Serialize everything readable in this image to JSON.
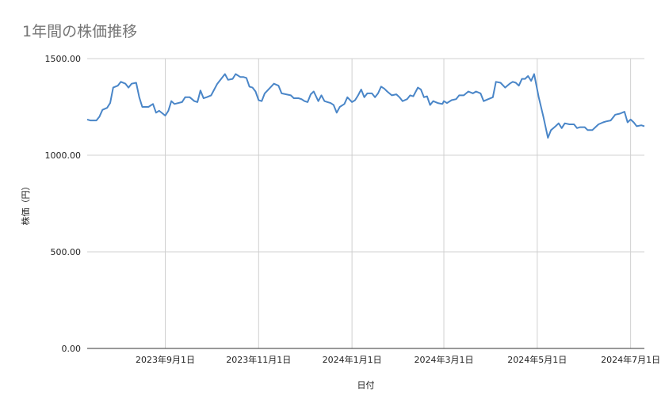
{
  "chart_data": {
    "type": "line",
    "title": "1年間の株価推移",
    "xlabel": "日付",
    "ylabel": "株価（円）",
    "ylim": [
      0,
      1500
    ],
    "y_ticks": [
      "0.00",
      "500.00",
      "1000.00",
      "1500.00"
    ],
    "x_ticks": [
      "2023年9月1日",
      "2023年11月1日",
      "2024年1月1日",
      "2024年3月1日",
      "2024年5月1日",
      "2024年7月1日"
    ],
    "x_tick_dates": [
      "2023-09-01",
      "2023-11-01",
      "2024-01-01",
      "2024-03-01",
      "2024-05-01",
      "2024-07-01"
    ],
    "xlim": [
      "2023-07-12",
      "2024-07-10"
    ],
    "grid": true,
    "legend": "none",
    "series": [
      {
        "color": "#4a86c8",
        "points": [
          [
            "2023-07-12",
            1185
          ],
          [
            "2023-07-14",
            1180
          ],
          [
            "2023-07-18",
            1180
          ],
          [
            "2023-07-20",
            1200
          ],
          [
            "2023-07-22",
            1235
          ],
          [
            "2023-07-25",
            1245
          ],
          [
            "2023-07-27",
            1270
          ],
          [
            "2023-07-29",
            1350
          ],
          [
            "2023-08-01",
            1360
          ],
          [
            "2023-08-03",
            1380
          ],
          [
            "2023-08-06",
            1370
          ],
          [
            "2023-08-08",
            1350
          ],
          [
            "2023-08-10",
            1370
          ],
          [
            "2023-08-13",
            1375
          ],
          [
            "2023-08-15",
            1300
          ],
          [
            "2023-08-17",
            1250
          ],
          [
            "2023-08-21",
            1250
          ],
          [
            "2023-08-24",
            1265
          ],
          [
            "2023-08-26",
            1220
          ],
          [
            "2023-08-28",
            1230
          ],
          [
            "2023-09-01",
            1205
          ],
          [
            "2023-09-03",
            1230
          ],
          [
            "2023-09-05",
            1280
          ],
          [
            "2023-09-07",
            1265
          ],
          [
            "2023-09-12",
            1275
          ],
          [
            "2023-09-14",
            1300
          ],
          [
            "2023-09-17",
            1300
          ],
          [
            "2023-09-20",
            1280
          ],
          [
            "2023-09-22",
            1275
          ],
          [
            "2023-09-24",
            1335
          ],
          [
            "2023-09-26",
            1295
          ],
          [
            "2023-09-28",
            1300
          ],
          [
            "2023-10-01",
            1310
          ],
          [
            "2023-10-03",
            1340
          ],
          [
            "2023-10-05",
            1370
          ],
          [
            "2023-10-08",
            1400
          ],
          [
            "2023-10-10",
            1420
          ],
          [
            "2023-10-12",
            1390
          ],
          [
            "2023-10-15",
            1395
          ],
          [
            "2023-10-17",
            1420
          ],
          [
            "2023-10-20",
            1405
          ],
          [
            "2023-10-22",
            1405
          ],
          [
            "2023-10-24",
            1400
          ],
          [
            "2023-10-26",
            1355
          ],
          [
            "2023-10-28",
            1350
          ],
          [
            "2023-10-30",
            1330
          ],
          [
            "2023-11-01",
            1285
          ],
          [
            "2023-11-03",
            1280
          ],
          [
            "2023-11-05",
            1320
          ],
          [
            "2023-11-08",
            1345
          ],
          [
            "2023-11-11",
            1370
          ],
          [
            "2023-11-14",
            1360
          ],
          [
            "2023-11-16",
            1320
          ],
          [
            "2023-11-19",
            1315
          ],
          [
            "2023-11-22",
            1310
          ],
          [
            "2023-11-24",
            1295
          ],
          [
            "2023-11-27",
            1295
          ],
          [
            "2023-11-29",
            1290
          ],
          [
            "2023-12-01",
            1280
          ],
          [
            "2023-12-03",
            1275
          ],
          [
            "2023-12-05",
            1315
          ],
          [
            "2023-12-07",
            1330
          ],
          [
            "2023-12-10",
            1280
          ],
          [
            "2023-12-12",
            1310
          ],
          [
            "2023-12-14",
            1280
          ],
          [
            "2023-12-16",
            1275
          ],
          [
            "2023-12-18",
            1270
          ],
          [
            "2023-12-20",
            1260
          ],
          [
            "2023-12-22",
            1220
          ],
          [
            "2023-12-24",
            1250
          ],
          [
            "2023-12-27",
            1265
          ],
          [
            "2023-12-29",
            1300
          ],
          [
            "2024-01-01",
            1275
          ],
          [
            "2024-01-03",
            1285
          ],
          [
            "2024-01-05",
            1310
          ],
          [
            "2024-01-07",
            1340
          ],
          [
            "2024-01-09",
            1300
          ],
          [
            "2024-01-11",
            1320
          ],
          [
            "2024-01-14",
            1320
          ],
          [
            "2024-01-16",
            1300
          ],
          [
            "2024-01-18",
            1320
          ],
          [
            "2024-01-20",
            1355
          ],
          [
            "2024-01-22",
            1345
          ],
          [
            "2024-01-24",
            1330
          ],
          [
            "2024-01-27",
            1310
          ],
          [
            "2024-01-30",
            1315
          ],
          [
            "2024-02-01",
            1300
          ],
          [
            "2024-02-03",
            1280
          ],
          [
            "2024-02-06",
            1290
          ],
          [
            "2024-02-08",
            1310
          ],
          [
            "2024-02-10",
            1305
          ],
          [
            "2024-02-13",
            1350
          ],
          [
            "2024-02-15",
            1340
          ],
          [
            "2024-02-17",
            1300
          ],
          [
            "2024-02-19",
            1305
          ],
          [
            "2024-02-21",
            1260
          ],
          [
            "2024-02-23",
            1280
          ],
          [
            "2024-02-26",
            1270
          ],
          [
            "2024-02-29",
            1265
          ],
          [
            "2024-03-01",
            1280
          ],
          [
            "2024-03-03",
            1270
          ],
          [
            "2024-03-06",
            1285
          ],
          [
            "2024-03-09",
            1290
          ],
          [
            "2024-03-11",
            1310
          ],
          [
            "2024-03-14",
            1310
          ],
          [
            "2024-03-17",
            1330
          ],
          [
            "2024-03-20",
            1320
          ],
          [
            "2024-03-22",
            1330
          ],
          [
            "2024-03-25",
            1320
          ],
          [
            "2024-03-27",
            1280
          ],
          [
            "2024-03-30",
            1290
          ],
          [
            "2024-04-02",
            1300
          ],
          [
            "2024-04-04",
            1380
          ],
          [
            "2024-04-07",
            1375
          ],
          [
            "2024-04-10",
            1350
          ],
          [
            "2024-04-13",
            1370
          ],
          [
            "2024-04-15",
            1380
          ],
          [
            "2024-04-17",
            1375
          ],
          [
            "2024-04-19",
            1360
          ],
          [
            "2024-04-21",
            1395
          ],
          [
            "2024-04-23",
            1395
          ],
          [
            "2024-04-25",
            1410
          ],
          [
            "2024-04-27",
            1385
          ],
          [
            "2024-04-29",
            1420
          ],
          [
            "2024-05-02",
            1300
          ],
          [
            "2024-05-05",
            1200
          ],
          [
            "2024-05-08",
            1090
          ],
          [
            "2024-05-10",
            1130
          ],
          [
            "2024-05-13",
            1150
          ],
          [
            "2024-05-15",
            1165
          ],
          [
            "2024-05-17",
            1140
          ],
          [
            "2024-05-19",
            1165
          ],
          [
            "2024-05-22",
            1160
          ],
          [
            "2024-05-25",
            1160
          ],
          [
            "2024-05-27",
            1140
          ],
          [
            "2024-05-29",
            1145
          ],
          [
            "2024-06-01",
            1145
          ],
          [
            "2024-06-03",
            1130
          ],
          [
            "2024-06-06",
            1130
          ],
          [
            "2024-06-08",
            1145
          ],
          [
            "2024-06-10",
            1160
          ],
          [
            "2024-06-13",
            1170
          ],
          [
            "2024-06-15",
            1175
          ],
          [
            "2024-06-18",
            1180
          ],
          [
            "2024-06-21",
            1210
          ],
          [
            "2024-06-24",
            1215
          ],
          [
            "2024-06-27",
            1225
          ],
          [
            "2024-06-29",
            1170
          ],
          [
            "2024-07-01",
            1185
          ],
          [
            "2024-07-03",
            1170
          ],
          [
            "2024-07-05",
            1150
          ],
          [
            "2024-07-08",
            1155
          ],
          [
            "2024-07-10",
            1150
          ]
        ]
      }
    ]
  }
}
